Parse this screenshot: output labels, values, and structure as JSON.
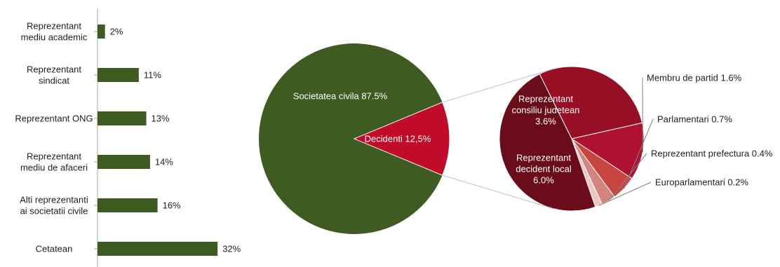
{
  "chart_data": [
    {
      "type": "bar",
      "orientation": "horizontal",
      "categories": [
        [
          "Reprezentant",
          "mediu academic"
        ],
        [
          "Reprezentant",
          "sindicat"
        ],
        [
          "Reprezentant ONG"
        ],
        [
          "Reprezentant",
          "mediu de afaceri"
        ],
        [
          "Alti reprezentanti",
          "ai societatii civile"
        ],
        [
          "Cetatean"
        ]
      ],
      "values": [
        2,
        11,
        13,
        14,
        16,
        32
      ],
      "value_labels": [
        "2%",
        "11%",
        "13%",
        "14%",
        "16%",
        "32%"
      ],
      "xlim": [
        0,
        40
      ],
      "grid": false,
      "color": "#3e5b22"
    },
    {
      "type": "pie",
      "slices": [
        {
          "label": "Societatea civila 87.5%",
          "value": 87.5,
          "color": "#3e5b22"
        },
        {
          "label": "Decidenti 12,5%",
          "value": 12.5,
          "color": "#c00b2a"
        }
      ]
    },
    {
      "type": "pie",
      "slices": [
        {
          "label": [
            "Reprezentant",
            "consiliu judetean",
            "3.6%"
          ],
          "value": 3.6,
          "color": "#960f24"
        },
        {
          "label": [
            "Membru de partid 1.6%"
          ],
          "value": 1.6,
          "color": "#ae1230"
        },
        {
          "label": [
            "Parlamentari 0.7%"
          ],
          "value": 0.7,
          "color": "#c8453f"
        },
        {
          "label": [
            "Reprezentant prefectura 0.4%"
          ],
          "value": 0.4,
          "color": "#d4847f"
        },
        {
          "label": [
            "Europarlamentari 0.2%"
          ],
          "value": 0.2,
          "color": "#ecc5c5"
        },
        {
          "label": [
            "Reprezentant",
            "decident local",
            "6.0%"
          ],
          "value": 6.0,
          "color": "#6b0c1a"
        }
      ]
    }
  ]
}
